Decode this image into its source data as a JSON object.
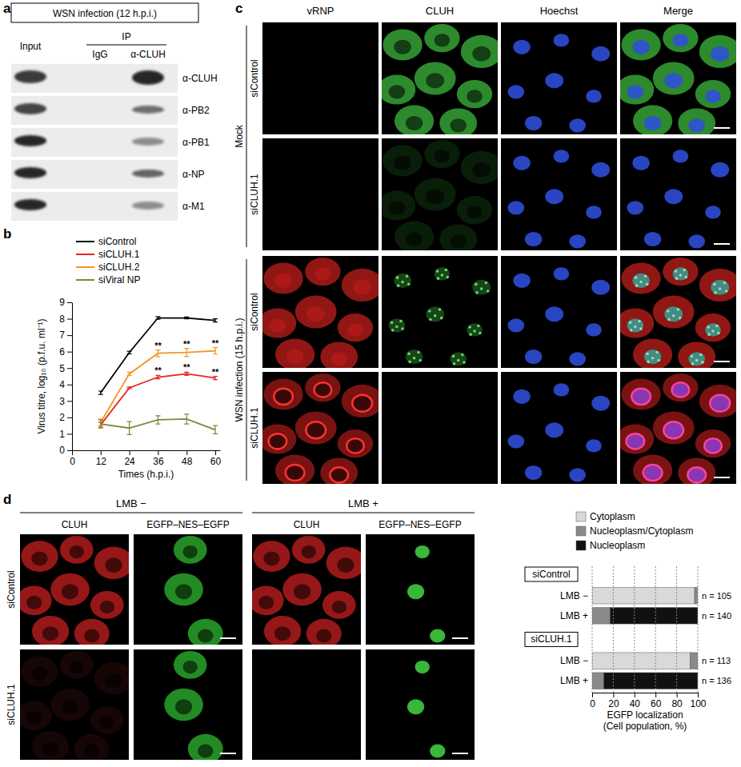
{
  "chart_data": [
    {
      "type": "line",
      "xlabel": "Times (h.p.i.)",
      "ylabel": "Virus titre, log₁₀ (p.f.u. ml⁻¹)",
      "x": [
        12,
        24,
        36,
        48,
        60
      ],
      "xlim": [
        0,
        62
      ],
      "xticks": [
        0,
        12,
        24,
        36,
        48,
        60
      ],
      "ylim": [
        0,
        9
      ],
      "yticks": [
        0,
        1,
        2,
        3,
        4,
        5,
        6,
        7,
        8,
        9
      ],
      "legend": "upper left",
      "series": [
        {
          "name": "siControl",
          "color": "#000000",
          "values": [
            3.5,
            5.95,
            8.05,
            8.05,
            7.9
          ],
          "errors": [
            0.1,
            0.08,
            0.08,
            0.06,
            0.1
          ]
        },
        {
          "name": "siCLUH.1",
          "color": "#e8231f",
          "values": [
            1.55,
            3.8,
            4.45,
            4.65,
            4.4
          ],
          "errors": [
            0.15,
            0.05,
            0.1,
            0.1,
            0.1
          ],
          "annotations": [
            null,
            null,
            "**",
            "**",
            "**"
          ]
        },
        {
          "name": "siCLUH.2",
          "color": "#f7941d",
          "values": [
            1.7,
            4.65,
            5.9,
            5.95,
            6.05
          ],
          "errors": [
            0.2,
            0.1,
            0.2,
            0.25,
            0.2
          ],
          "annotations": [
            null,
            null,
            "**",
            "**",
            "**"
          ]
        },
        {
          "name": "siViral NP",
          "color": "#7a8a3a",
          "values": [
            1.6,
            1.35,
            1.85,
            1.9,
            1.25
          ],
          "errors": [
            0.25,
            0.4,
            0.25,
            0.3,
            0.25
          ]
        }
      ]
    },
    {
      "type": "bar",
      "orientation": "horizontal",
      "stacked": true,
      "grid": true,
      "legend": "top",
      "categories": [
        "LMB −",
        "LMB +",
        "LMB −",
        "LMB +"
      ],
      "group_labels": [
        "siControl",
        null,
        "siCLUH.1",
        null
      ],
      "annotations": [
        "n = 105",
        "n = 140",
        "n = 113",
        "n = 136"
      ],
      "xlabel": [
        "EGFP localization",
        "(Cell population, %)"
      ],
      "xlim": [
        0,
        100
      ],
      "xticks": [
        0,
        20,
        40,
        60,
        80,
        100
      ],
      "series": [
        {
          "name": "Cytoplasm",
          "color": "#d9d9d9",
          "values": [
            97,
            0,
            93,
            0
          ]
        },
        {
          "name": "Nucleoplasm/Cytoplasm",
          "color": "#8a8a8a",
          "values": [
            3,
            17,
            7,
            11
          ]
        },
        {
          "name": "Nucleoplasm",
          "color": "#111111",
          "values": [
            0,
            83,
            0,
            89
          ]
        }
      ]
    }
  ],
  "figure": {
    "panel_labels": [
      "a",
      "b",
      "c",
      "d"
    ],
    "a": {
      "header": "WSN infection (12 h.p.i.)",
      "ip_label": "IP",
      "lanes": [
        "Input",
        "IgG",
        "α-CLUH"
      ],
      "blots": [
        "α-CLUH",
        "α-PB2",
        "α-PB1",
        "α-NP",
        "α-M1"
      ]
    },
    "c": {
      "columns": [
        "vRNP",
        "CLUH",
        "Hoechst",
        "Merge"
      ],
      "groups": [
        {
          "label": "Mock",
          "rows": [
            "siControl",
            "siCLUH.1"
          ]
        },
        {
          "label": "WSN infection (15 h.p.i.)",
          "rows": [
            "siControl",
            "siCLUH.1"
          ]
        }
      ]
    },
    "d": {
      "conditions": [
        "LMB −",
        "LMB +"
      ],
      "columns": [
        "CLUH",
        "EGFP–NES–EGFP"
      ],
      "rows": [
        "siControl",
        "siCLUH.1"
      ]
    }
  }
}
